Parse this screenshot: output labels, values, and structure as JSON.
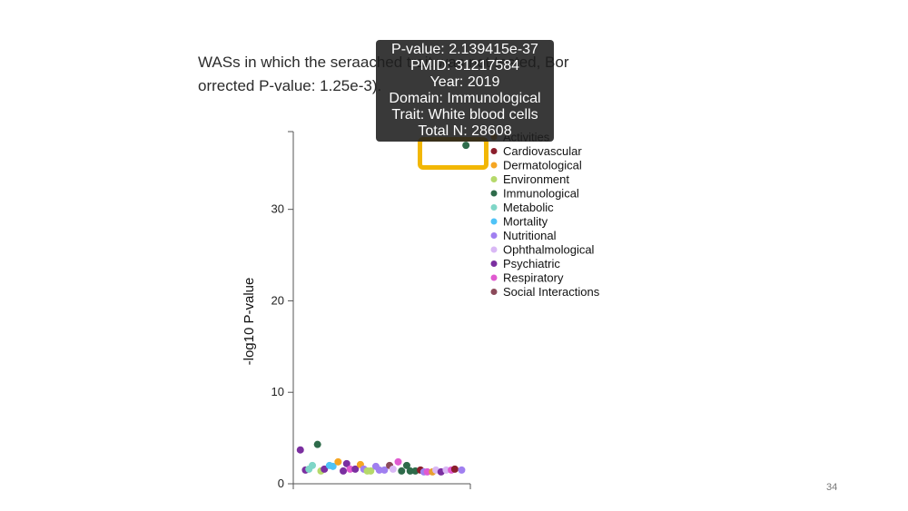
{
  "slide": {
    "caption_lines": [
      "WASs in which the seraached trait was not tested, Bor",
      "orrected P-value: 1.25e-3)."
    ],
    "page_number": "34"
  },
  "tooltip": {
    "lines": [
      "P-value: 2.139415e-37",
      "PMID: 31217584",
      "Year: 2019",
      "Domain: Immunological",
      "Trait: White blood cells",
      "Total N: 28608"
    ]
  },
  "chart_data": {
    "type": "scatter",
    "ylabel": "-log10 P-value",
    "xlabel": "",
    "ylim": [
      0,
      38.5
    ],
    "yticks": [
      0,
      10,
      20,
      30
    ],
    "xlim": [
      0,
      1
    ],
    "legend": {
      "placement": "right",
      "entries": [
        {
          "name": "Activities",
          "color": "#e8a030"
        },
        {
          "name": "Cardiovascular",
          "color": "#8b1e2c"
        },
        {
          "name": "Dermatological",
          "color": "#f5a623"
        },
        {
          "name": "Environment",
          "color": "#b5d96a"
        },
        {
          "name": "Immunological",
          "color": "#2e6b4a"
        },
        {
          "name": "Metabolic",
          "color": "#7fd6c7"
        },
        {
          "name": "Mortality",
          "color": "#4fc3f7"
        },
        {
          "name": "Nutritional",
          "color": "#a07ff0"
        },
        {
          "name": "Ophthalmological",
          "color": "#d9b8f5"
        },
        {
          "name": "Psychiatric",
          "color": "#7b2fa0"
        },
        {
          "name": "Respiratory",
          "color": "#e05ad0"
        },
        {
          "name": "Social Interactions",
          "color": "#8b4a5a"
        }
      ]
    },
    "points": [
      {
        "x": 0.02,
        "y": 3.7,
        "domain": "Psychiatric"
      },
      {
        "x": 0.05,
        "y": 1.5,
        "domain": "Psychiatric"
      },
      {
        "x": 0.07,
        "y": 1.6,
        "domain": "Metabolic"
      },
      {
        "x": 0.09,
        "y": 2.0,
        "domain": "Metabolic"
      },
      {
        "x": 0.12,
        "y": 4.3,
        "domain": "Immunological"
      },
      {
        "x": 0.14,
        "y": 1.4,
        "domain": "Environment"
      },
      {
        "x": 0.16,
        "y": 1.6,
        "domain": "Psychiatric"
      },
      {
        "x": 0.19,
        "y": 2.0,
        "domain": "Mortality"
      },
      {
        "x": 0.21,
        "y": 1.9,
        "domain": "Mortality"
      },
      {
        "x": 0.24,
        "y": 2.4,
        "domain": "Dermatological"
      },
      {
        "x": 0.27,
        "y": 1.4,
        "domain": "Psychiatric"
      },
      {
        "x": 0.29,
        "y": 2.2,
        "domain": "Psychiatric"
      },
      {
        "x": 0.31,
        "y": 1.6,
        "domain": "Respiratory"
      },
      {
        "x": 0.34,
        "y": 1.6,
        "domain": "Psychiatric"
      },
      {
        "x": 0.37,
        "y": 2.1,
        "domain": "Dermatological"
      },
      {
        "x": 0.39,
        "y": 1.6,
        "domain": "Nutritional"
      },
      {
        "x": 0.41,
        "y": 1.4,
        "domain": "Environment"
      },
      {
        "x": 0.43,
        "y": 1.4,
        "domain": "Environment"
      },
      {
        "x": 0.46,
        "y": 1.9,
        "domain": "Nutritional"
      },
      {
        "x": 0.48,
        "y": 1.5,
        "domain": "Nutritional"
      },
      {
        "x": 0.51,
        "y": 1.5,
        "domain": "Nutritional"
      },
      {
        "x": 0.54,
        "y": 2.0,
        "domain": "Social Interactions"
      },
      {
        "x": 0.56,
        "y": 1.6,
        "domain": "Ophthalmological"
      },
      {
        "x": 0.59,
        "y": 2.4,
        "domain": "Respiratory"
      },
      {
        "x": 0.61,
        "y": 1.4,
        "domain": "Immunological"
      },
      {
        "x": 0.64,
        "y": 2.0,
        "domain": "Immunological"
      },
      {
        "x": 0.66,
        "y": 1.4,
        "domain": "Immunological"
      },
      {
        "x": 0.69,
        "y": 1.4,
        "domain": "Immunological"
      },
      {
        "x": 0.72,
        "y": 1.5,
        "domain": "Cardiovascular"
      },
      {
        "x": 0.74,
        "y": 1.3,
        "domain": "Nutritional"
      },
      {
        "x": 0.76,
        "y": 1.3,
        "domain": "Respiratory"
      },
      {
        "x": 0.79,
        "y": 1.3,
        "domain": "Activities"
      },
      {
        "x": 0.81,
        "y": 1.5,
        "domain": "Ophthalmological"
      },
      {
        "x": 0.84,
        "y": 1.3,
        "domain": "Psychiatric"
      },
      {
        "x": 0.87,
        "y": 1.5,
        "domain": "Ophthalmological"
      },
      {
        "x": 0.9,
        "y": 1.5,
        "domain": "Respiratory"
      },
      {
        "x": 0.92,
        "y": 1.6,
        "domain": "Cardiovascular"
      },
      {
        "x": 0.96,
        "y": 1.5,
        "domain": "Nutritional"
      },
      {
        "x": 0.985,
        "y": 37.0,
        "domain": "Immunological"
      }
    ]
  }
}
